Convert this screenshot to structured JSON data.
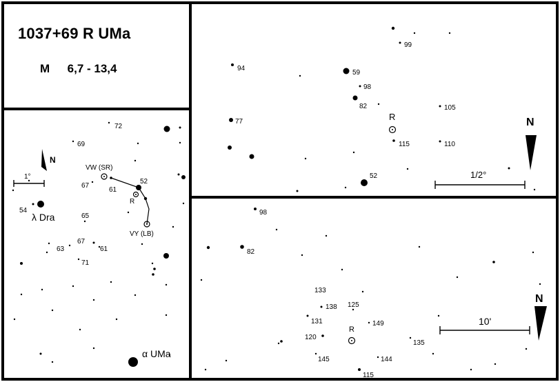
{
  "title": {
    "designation": "1037+69  R UMa",
    "range_prefix": "M",
    "range": "6,7 - 13,4"
  },
  "wide_field": {
    "scale_label": "1°",
    "north_label": "N",
    "stars": [
      {
        "name": "R",
        "mag": "R",
        "type": "var"
      },
      {
        "name": "VW (SR)",
        "type": "var"
      },
      {
        "name": "VY (LB)",
        "type": "var"
      },
      {
        "name": "λ Dra",
        "type": "named"
      },
      {
        "name": "α UMa",
        "type": "named"
      }
    ],
    "labels": [
      "72",
      "69",
      "67",
      "61",
      "52",
      "54",
      "65",
      "67",
      "61",
      "63",
      "71"
    ]
  },
  "mid_field": {
    "scale_label": "1/2°",
    "north_label": "N",
    "var_label": "R",
    "labels": [
      "99",
      "94",
      "59",
      "98",
      "82",
      "105",
      "77",
      "115",
      "110",
      "52"
    ]
  },
  "deep_field": {
    "scale_label": "10'",
    "north_label": "N",
    "var_label": "R",
    "labels": [
      "98",
      "82",
      "133",
      "138",
      "125",
      "131",
      "149",
      "120",
      "135",
      "145",
      "144",
      "115"
    ]
  }
}
